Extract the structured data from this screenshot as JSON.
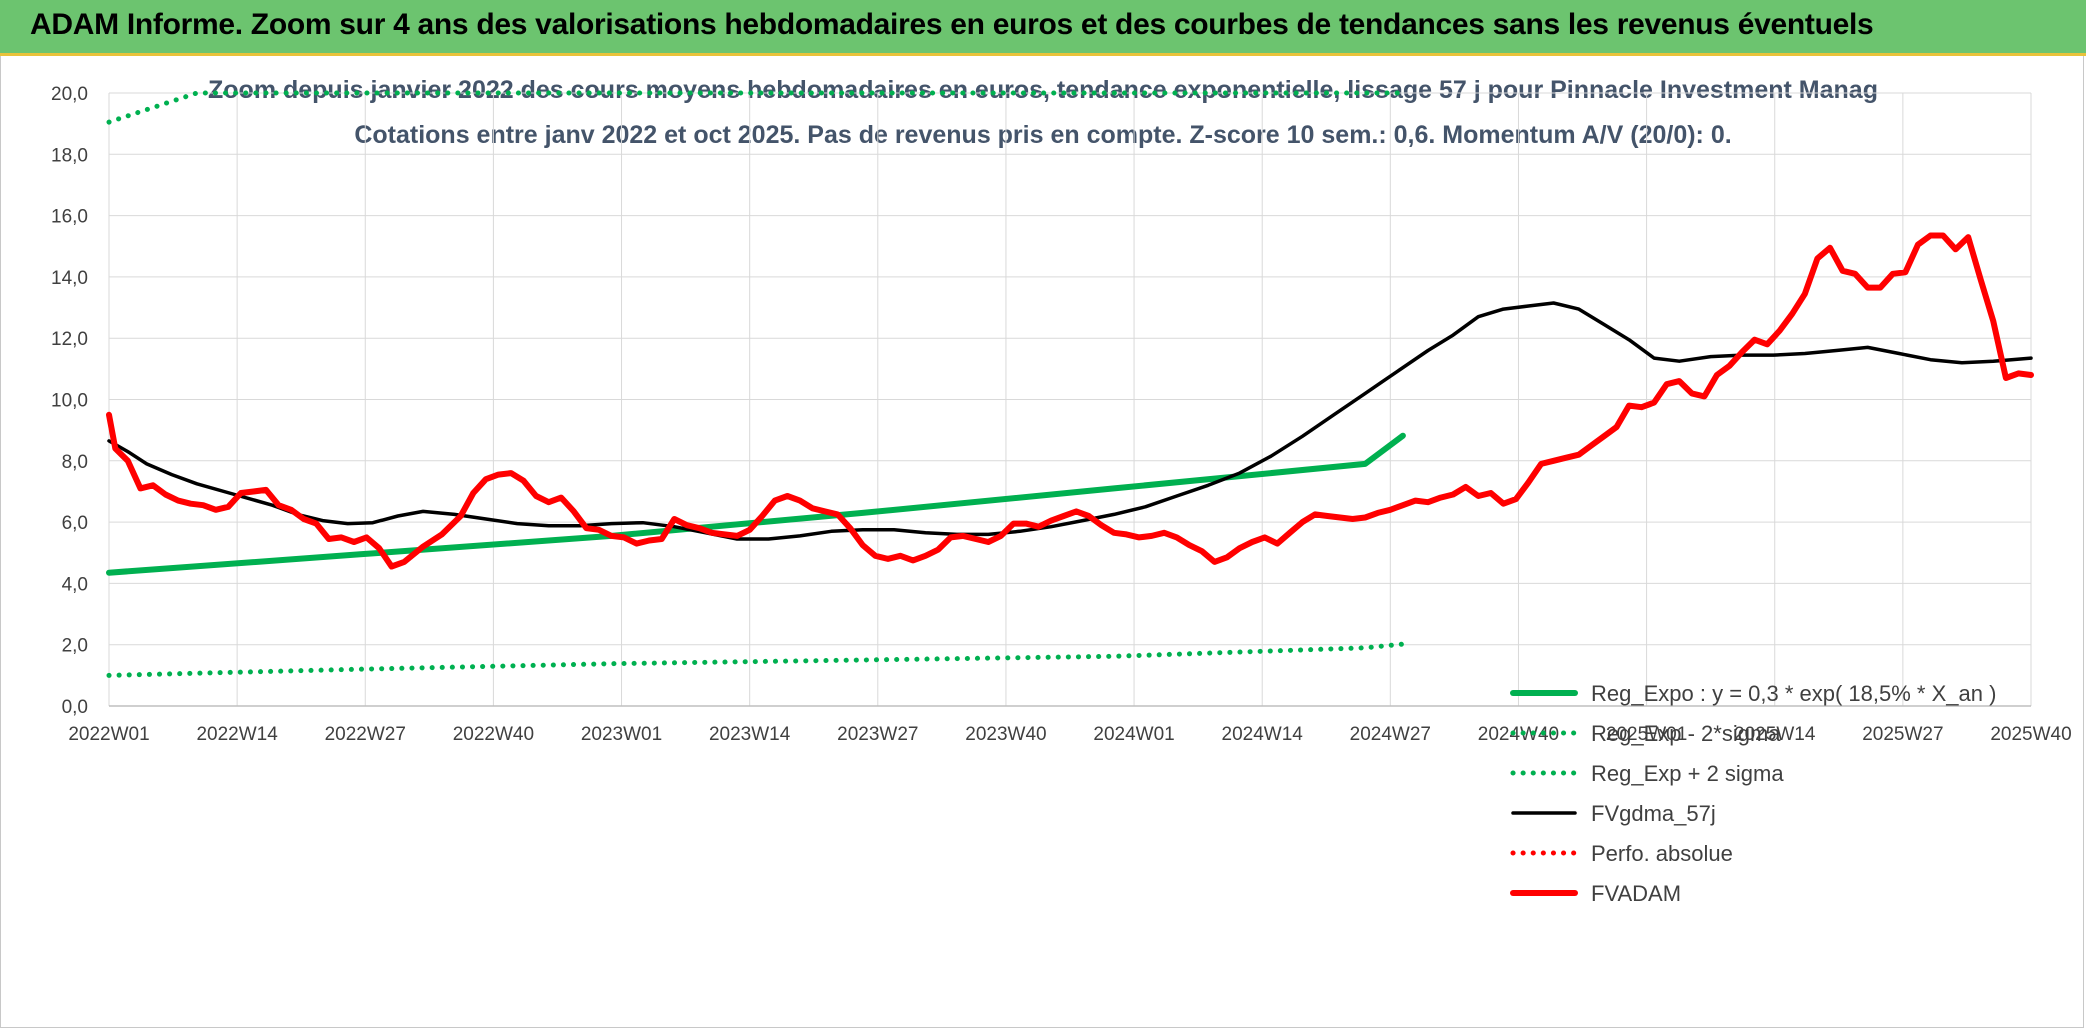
{
  "banner": {
    "title": "ADAM Informe. Zoom sur 4 ans des valorisations hebdomadaires en euros et des courbes de tendances sans les revenus éventuels"
  },
  "colors": {
    "banner_bg": "#6cc46f",
    "banner_border": "#e9c23a",
    "grid": "#d9d9d9",
    "title_text": "#44546a",
    "axis_text": "#404040",
    "reg_expo": "#00b050",
    "fvgdma": "#000000",
    "perfo": "#ff0000",
    "fvadam": "#ff0000"
  },
  "chart_data": {
    "type": "line",
    "title": "Zoom depuis janvier 2022 des cours moyens hebdomadaires en euros, tendance exponentielle, lissage 57 j pour Pinnacle Investment Manag",
    "subtitle": "Cotations entre janv 2022 et oct 2025. Pas de revenus pris en compte. Z-score 10 sem.: 0,6. Momentum A/V (20/0): 0.",
    "xlabel": "",
    "ylabel": "",
    "ylim": [
      0,
      20
    ],
    "yticks": [
      "0,0",
      "2,0",
      "4,0",
      "6,0",
      "8,0",
      "10,0",
      "12,0",
      "14,0",
      "16,0",
      "18,0",
      "20,0"
    ],
    "xticks": [
      "2022W01",
      "2022W14",
      "2022W27",
      "2022W40",
      "2023W01",
      "2023W14",
      "2023W27",
      "2023W40",
      "2024W01",
      "2024W14",
      "2024W27",
      "2024W40",
      "2025W01",
      "2025W14",
      "2025W27",
      "2025W40"
    ],
    "grid": true,
    "legend_position": "right",
    "series": [
      {
        "name": "Reg_Expo : y = 0,3 * exp( 18,5% *  X_an )",
        "style": "solid-thick",
        "color": "#00b050",
        "points": [
          [
            0,
            4.35
          ],
          [
            40,
            4.95
          ],
          [
            80,
            5.55
          ],
          [
            120,
            6.3
          ],
          [
            160,
            7.1
          ],
          [
            200,
            7.9
          ],
          [
            206,
            8.82
          ]
        ]
      },
      {
        "name": "Reg_Exp - 2*sigma",
        "style": "dotted",
        "color": "#00b050",
        "points": [
          [
            0,
            1.0
          ],
          [
            40,
            1.2
          ],
          [
            80,
            1.38
          ],
          [
            120,
            1.5
          ],
          [
            160,
            1.62
          ],
          [
            200,
            1.9
          ],
          [
            206,
            2.02
          ]
        ]
      },
      {
        "name": "Reg_Exp + 2 sigma",
        "style": "dotted",
        "color": "#00b050",
        "points": [
          [
            0,
            19.05
          ],
          [
            14,
            20.0
          ],
          [
            184,
            20.0
          ],
          [
            206,
            20.0
          ]
        ]
      },
      {
        "name": "FVgdma_57j",
        "style": "solid",
        "color": "#000000",
        "points": [
          [
            0,
            8.65
          ],
          [
            3,
            8.3
          ],
          [
            6,
            7.9
          ],
          [
            10,
            7.55
          ],
          [
            14,
            7.25
          ],
          [
            20,
            6.9
          ],
          [
            26,
            6.55
          ],
          [
            30,
            6.25
          ],
          [
            34,
            6.05
          ],
          [
            38,
            5.95
          ],
          [
            42,
            5.98
          ],
          [
            46,
            6.2
          ],
          [
            50,
            6.35
          ],
          [
            55,
            6.25
          ],
          [
            60,
            6.1
          ],
          [
            65,
            5.95
          ],
          [
            70,
            5.88
          ],
          [
            75,
            5.88
          ],
          [
            80,
            5.95
          ],
          [
            85,
            5.98
          ],
          [
            90,
            5.85
          ],
          [
            95,
            5.65
          ],
          [
            100,
            5.45
          ],
          [
            105,
            5.45
          ],
          [
            110,
            5.55
          ],
          [
            115,
            5.7
          ],
          [
            120,
            5.75
          ],
          [
            125,
            5.75
          ],
          [
            130,
            5.65
          ],
          [
            135,
            5.6
          ],
          [
            140,
            5.6
          ],
          [
            145,
            5.7
          ],
          [
            150,
            5.85
          ],
          [
            155,
            6.05
          ],
          [
            160,
            6.25
          ],
          [
            165,
            6.5
          ],
          [
            170,
            6.85
          ],
          [
            175,
            7.2
          ],
          [
            180,
            7.6
          ],
          [
            185,
            8.15
          ],
          [
            190,
            8.8
          ],
          [
            195,
            9.5
          ],
          [
            200,
            10.2
          ],
          [
            205,
            10.9
          ],
          [
            210,
            11.6
          ],
          [
            214,
            12.1
          ],
          [
            218,
            12.7
          ],
          [
            222,
            12.95
          ],
          [
            226,
            13.05
          ],
          [
            230,
            13.15
          ],
          [
            234,
            12.95
          ],
          [
            238,
            12.45
          ],
          [
            242,
            11.95
          ],
          [
            246,
            11.35
          ],
          [
            250,
            11.25
          ],
          [
            255,
            11.4
          ],
          [
            260,
            11.45
          ],
          [
            265,
            11.45
          ],
          [
            270,
            11.5
          ],
          [
            275,
            11.6
          ],
          [
            280,
            11.7
          ],
          [
            285,
            11.5
          ],
          [
            290,
            11.3
          ],
          [
            295,
            11.2
          ],
          [
            300,
            11.25
          ],
          [
            306,
            11.35
          ]
        ]
      },
      {
        "name": "Perfo. absolue",
        "style": "dotted",
        "color": "#ff0000",
        "points": []
      },
      {
        "name": "FVADAM",
        "style": "solid-thick",
        "color": "#ff0000",
        "points": [
          [
            0,
            9.5
          ],
          [
            1,
            8.4
          ],
          [
            3,
            8.0
          ],
          [
            5,
            7.1
          ],
          [
            7,
            7.2
          ],
          [
            9,
            6.9
          ],
          [
            11,
            6.7
          ],
          [
            13,
            6.6
          ],
          [
            15,
            6.55
          ],
          [
            17,
            6.4
          ],
          [
            19,
            6.5
          ],
          [
            21,
            6.95
          ],
          [
            23,
            7.0
          ],
          [
            25,
            7.05
          ],
          [
            27,
            6.55
          ],
          [
            29,
            6.4
          ],
          [
            31,
            6.1
          ],
          [
            33,
            5.95
          ],
          [
            35,
            5.45
          ],
          [
            37,
            5.5
          ],
          [
            39,
            5.35
          ],
          [
            41,
            5.5
          ],
          [
            43,
            5.15
          ],
          [
            45,
            4.55
          ],
          [
            47,
            4.7
          ],
          [
            50,
            5.2
          ],
          [
            53,
            5.6
          ],
          [
            56,
            6.2
          ],
          [
            58,
            6.95
          ],
          [
            60,
            7.4
          ],
          [
            62,
            7.55
          ],
          [
            64,
            7.6
          ],
          [
            66,
            7.35
          ],
          [
            68,
            6.85
          ],
          [
            70,
            6.65
          ],
          [
            72,
            6.8
          ],
          [
            74,
            6.35
          ],
          [
            76,
            5.8
          ],
          [
            78,
            5.75
          ],
          [
            80,
            5.55
          ],
          [
            82,
            5.5
          ],
          [
            84,
            5.3
          ],
          [
            86,
            5.4
          ],
          [
            88,
            5.45
          ],
          [
            90,
            6.1
          ],
          [
            92,
            5.9
          ],
          [
            94,
            5.8
          ],
          [
            96,
            5.65
          ],
          [
            98,
            5.6
          ],
          [
            100,
            5.55
          ],
          [
            102,
            5.75
          ],
          [
            104,
            6.2
          ],
          [
            106,
            6.7
          ],
          [
            108,
            6.85
          ],
          [
            110,
            6.7
          ],
          [
            112,
            6.45
          ],
          [
            114,
            6.35
          ],
          [
            116,
            6.25
          ],
          [
            118,
            5.8
          ],
          [
            120,
            5.25
          ],
          [
            122,
            4.9
          ],
          [
            124,
            4.8
          ],
          [
            126,
            4.9
          ],
          [
            128,
            4.75
          ],
          [
            130,
            4.9
          ],
          [
            132,
            5.1
          ],
          [
            134,
            5.5
          ],
          [
            136,
            5.55
          ],
          [
            138,
            5.45
          ],
          [
            140,
            5.35
          ],
          [
            142,
            5.55
          ],
          [
            144,
            5.95
          ],
          [
            146,
            5.95
          ],
          [
            148,
            5.85
          ],
          [
            150,
            6.05
          ],
          [
            152,
            6.2
          ],
          [
            154,
            6.35
          ],
          [
            156,
            6.2
          ],
          [
            158,
            5.9
          ],
          [
            160,
            5.65
          ],
          [
            162,
            5.6
          ],
          [
            164,
            5.5
          ],
          [
            166,
            5.55
          ],
          [
            168,
            5.65
          ],
          [
            170,
            5.5
          ],
          [
            172,
            5.25
          ],
          [
            174,
            5.05
          ],
          [
            176,
            4.7
          ],
          [
            178,
            4.85
          ],
          [
            180,
            5.15
          ],
          [
            182,
            5.35
          ],
          [
            184,
            5.5
          ],
          [
            186,
            5.3
          ],
          [
            188,
            5.65
          ],
          [
            190,
            6.0
          ],
          [
            192,
            6.25
          ],
          [
            194,
            6.2
          ],
          [
            196,
            6.15
          ],
          [
            198,
            6.1
          ],
          [
            200,
            6.15
          ],
          [
            202,
            6.3
          ],
          [
            204,
            6.4
          ],
          [
            206,
            6.55
          ],
          [
            208,
            6.7
          ],
          [
            210,
            6.65
          ],
          [
            212,
            6.8
          ],
          [
            214,
            6.9
          ],
          [
            216,
            7.15
          ],
          [
            218,
            6.85
          ],
          [
            220,
            6.95
          ],
          [
            222,
            6.6
          ],
          [
            224,
            6.75
          ],
          [
            226,
            7.3
          ],
          [
            228,
            7.9
          ],
          [
            230,
            8.0
          ],
          [
            232,
            8.1
          ],
          [
            234,
            8.2
          ],
          [
            236,
            8.5
          ],
          [
            238,
            8.8
          ],
          [
            240,
            9.1
          ],
          [
            242,
            9.8
          ],
          [
            244,
            9.75
          ],
          [
            246,
            9.9
          ],
          [
            248,
            10.5
          ],
          [
            250,
            10.6
          ],
          [
            252,
            10.2
          ],
          [
            254,
            10.1
          ],
          [
            256,
            10.8
          ],
          [
            258,
            11.1
          ],
          [
            260,
            11.55
          ],
          [
            262,
            11.95
          ],
          [
            264,
            11.8
          ],
          [
            266,
            12.25
          ],
          [
            268,
            12.8
          ],
          [
            270,
            13.45
          ],
          [
            272,
            14.6
          ],
          [
            274,
            14.95
          ],
          [
            276,
            14.2
          ],
          [
            278,
            14.1
          ],
          [
            280,
            13.65
          ],
          [
            282,
            13.65
          ],
          [
            284,
            14.1
          ],
          [
            286,
            14.15
          ],
          [
            288,
            15.05
          ],
          [
            290,
            15.35
          ],
          [
            292,
            15.35
          ],
          [
            294,
            14.9
          ],
          [
            296,
            15.3
          ],
          [
            298,
            13.9
          ],
          [
            300,
            12.55
          ],
          [
            302,
            10.7
          ],
          [
            304,
            10.85
          ],
          [
            306,
            10.8
          ]
        ]
      }
    ]
  }
}
